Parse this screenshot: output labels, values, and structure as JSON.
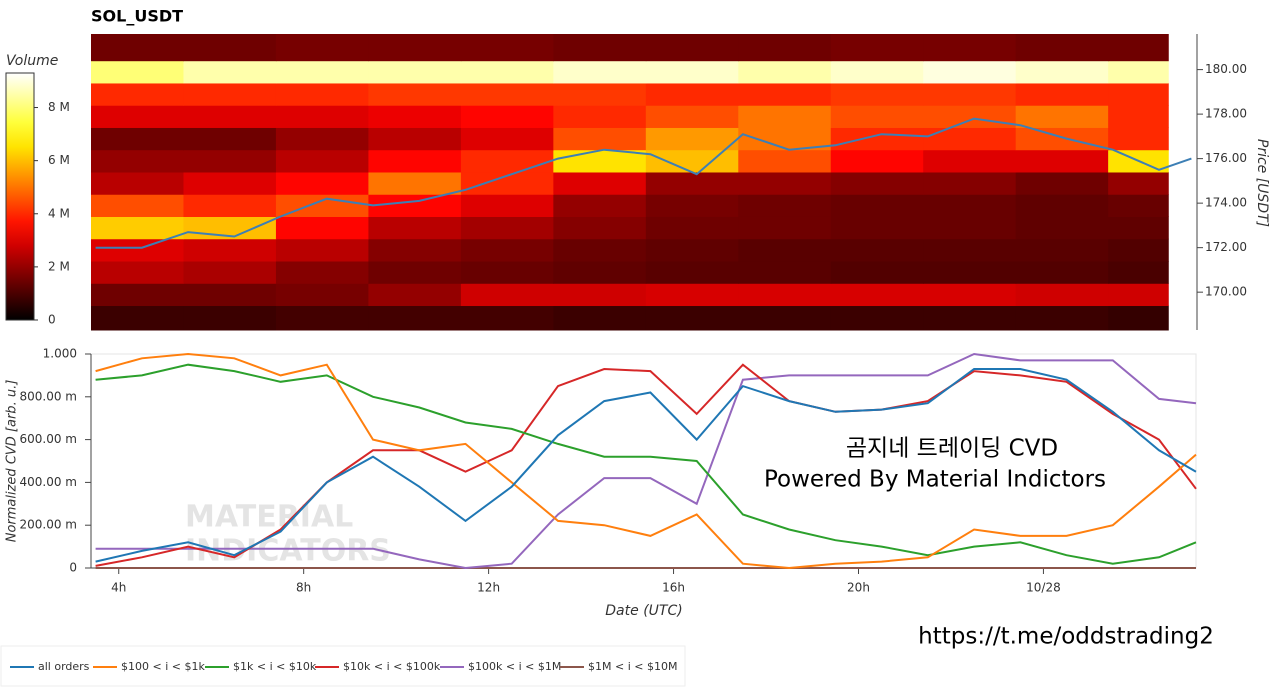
{
  "chart_data": [
    {
      "type": "heatmap",
      "title": "SOL_USDT",
      "ylabel": "Price [USDT]",
      "xlim": [
        3.4,
        27.3
      ],
      "ylim": [
        168.3,
        181.6
      ],
      "yticks": [
        {
          "value": 170,
          "label": "170.00"
        },
        {
          "value": 172,
          "label": "172.00"
        },
        {
          "value": 174,
          "label": "174.00"
        },
        {
          "value": 176,
          "label": "176.00"
        },
        {
          "value": 178,
          "label": "178.00"
        },
        {
          "value": 180,
          "label": "180.00"
        }
      ],
      "x_edges": [
        3.4,
        5.4,
        7.4,
        9.4,
        11.4,
        13.4,
        15.4,
        17.4,
        19.4,
        21.4,
        23.4,
        25.4,
        26.7
      ],
      "y_edges": [
        168.3,
        169.4,
        170.4,
        171.4,
        172.4,
        173.4,
        174.4,
        175.4,
        176.4,
        177.4,
        178.4,
        179.4,
        180.4,
        181.6
      ],
      "z": [
        [
          0.8,
          0.8,
          0.9,
          0.9,
          0.9,
          0.8,
          0.8,
          0.8,
          0.8,
          0.8,
          0.8,
          0.7
        ],
        [
          1.5,
          1.5,
          1.6,
          2.0,
          2.8,
          2.8,
          2.9,
          2.9,
          2.9,
          2.9,
          2.8,
          2.8
        ],
        [
          2.5,
          2.3,
          1.8,
          1.5,
          1.4,
          1.3,
          1.2,
          1.2,
          1.1,
          1.1,
          1.1,
          1.0
        ],
        [
          3.0,
          2.8,
          2.5,
          1.8,
          1.6,
          1.4,
          1.3,
          1.2,
          1.2,
          1.2,
          1.2,
          1.1
        ],
        [
          6.2,
          6.0,
          3.5,
          2.5,
          2.2,
          1.8,
          1.5,
          1.5,
          1.4,
          1.4,
          1.3,
          1.3
        ],
        [
          4.5,
          4.0,
          4.5,
          3.5,
          3.0,
          2.0,
          1.6,
          1.5,
          1.4,
          1.4,
          1.3,
          1.4
        ],
        [
          2.5,
          3.0,
          3.5,
          5.0,
          4.0,
          3.0,
          2.0,
          2.0,
          1.8,
          1.8,
          1.5,
          2.0
        ],
        [
          2.0,
          2.0,
          2.5,
          3.5,
          4.0,
          6.5,
          6.0,
          4.5,
          3.5,
          3.0,
          3.0,
          6.5
        ],
        [
          1.5,
          1.5,
          2.0,
          2.5,
          3.0,
          4.5,
          5.5,
          5.0,
          4.0,
          4.0,
          4.5,
          4.0
        ],
        [
          3.0,
          3.0,
          3.0,
          3.2,
          3.5,
          4.0,
          4.5,
          5.0,
          4.5,
          4.5,
          5.0,
          4.0
        ],
        [
          4.0,
          4.0,
          4.0,
          4.2,
          4.2,
          4.2,
          4.0,
          4.0,
          4.2,
          4.2,
          4.0,
          4.0
        ],
        [
          8.0,
          8.5,
          8.5,
          8.5,
          8.5,
          8.8,
          8.8,
          8.5,
          8.8,
          9.0,
          8.8,
          8.5
        ],
        [
          1.5,
          1.5,
          1.6,
          1.6,
          1.6,
          1.5,
          1.5,
          1.5,
          1.6,
          1.6,
          1.5,
          1.5
        ]
      ],
      "colorbar": {
        "label": "Volume",
        "lim": [
          0,
          9.3
        ],
        "ticks": [
          0,
          {
            "value": 2,
            "label": "2 M"
          },
          {
            "value": 4,
            "label": "4 M"
          },
          {
            "value": 6,
            "label": "6 M"
          },
          {
            "value": 8,
            "label": "8 M"
          }
        ]
      },
      "line": {
        "color": "#3d7fb5",
        "x": [
          3.5,
          4.5,
          5.5,
          6.5,
          7.5,
          8.5,
          9.5,
          10.5,
          11.5,
          12.5,
          13.5,
          14.5,
          15.5,
          16.5,
          17.5,
          18.5,
          19.5,
          20.5,
          21.5,
          22.5,
          23.5,
          24.5,
          25.5,
          26.5,
          27.2
        ],
        "values": [
          172.0,
          172.0,
          172.7,
          172.5,
          173.4,
          174.2,
          173.9,
          174.1,
          174.6,
          175.3,
          176.0,
          176.4,
          176.2,
          175.3,
          177.1,
          176.4,
          176.6,
          177.1,
          177.0,
          177.8,
          177.5,
          176.9,
          176.4,
          175.5,
          176.0
        ]
      }
    },
    {
      "type": "line",
      "xlabel": "Date (UTC)",
      "ylabel": "Normalized CVD [arb. u.]",
      "xlim": [
        3.4,
        27.3
      ],
      "xticks": [
        {
          "value": 4,
          "label": "4h"
        },
        {
          "value": 8,
          "label": "8h"
        },
        {
          "value": 12,
          "label": "12h"
        },
        {
          "value": 16,
          "label": "16h"
        },
        {
          "value": 20,
          "label": "20h"
        },
        {
          "value": 24,
          "label": "10/28"
        }
      ],
      "ylim": [
        0,
        1
      ],
      "yticks": [
        0,
        {
          "value": 0.2,
          "label": "200.00 m"
        },
        {
          "value": 0.4,
          "label": "400.00 m"
        },
        {
          "value": 0.6,
          "label": "600.00 m"
        },
        {
          "value": 0.8,
          "label": "800.00 m"
        },
        {
          "value": 1,
          "label": "1.000"
        }
      ],
      "x": [
        3.5,
        4.5,
        5.5,
        6.5,
        7.5,
        8.5,
        9.5,
        10.5,
        11.5,
        12.5,
        13.5,
        14.5,
        15.5,
        16.5,
        17.5,
        18.5,
        19.5,
        20.5,
        21.5,
        22.5,
        23.5,
        24.5,
        25.5,
        26.5,
        27.3
      ],
      "series": [
        {
          "name": "all orders",
          "color": "#1f77b4",
          "values": [
            0.03,
            0.08,
            0.12,
            0.06,
            0.17,
            0.4,
            0.52,
            0.38,
            0.22,
            0.38,
            0.62,
            0.78,
            0.82,
            0.6,
            0.85,
            0.78,
            0.73,
            0.74,
            0.77,
            0.93,
            0.93,
            0.88,
            0.73,
            0.55,
            0.45
          ]
        },
        {
          "name": "$100 < i < $1k",
          "color": "#ff7f0e",
          "values": [
            0.92,
            0.98,
            1.0,
            0.98,
            0.9,
            0.95,
            0.6,
            0.55,
            0.58,
            0.4,
            0.22,
            0.2,
            0.15,
            0.25,
            0.02,
            0.0,
            0.02,
            0.03,
            0.05,
            0.18,
            0.15,
            0.15,
            0.2,
            0.38,
            0.53
          ]
        },
        {
          "name": "$1k < i < $10k",
          "color": "#2ca02c",
          "values": [
            0.88,
            0.9,
            0.95,
            0.92,
            0.87,
            0.9,
            0.8,
            0.75,
            0.68,
            0.65,
            0.58,
            0.52,
            0.52,
            0.5,
            0.25,
            0.18,
            0.13,
            0.1,
            0.06,
            0.1,
            0.12,
            0.06,
            0.02,
            0.05,
            0.12
          ]
        },
        {
          "name": "$10k < i < $100k",
          "color": "#d62728",
          "values": [
            0.01,
            0.05,
            0.1,
            0.05,
            0.18,
            0.4,
            0.55,
            0.55,
            0.45,
            0.55,
            0.85,
            0.93,
            0.92,
            0.72,
            0.95,
            0.78,
            0.73,
            0.74,
            0.78,
            0.92,
            0.9,
            0.87,
            0.72,
            0.6,
            0.37
          ]
        },
        {
          "name": "$100k < i < $1M",
          "color": "#9467bd",
          "values": [
            0.09,
            0.09,
            0.09,
            0.09,
            0.09,
            0.09,
            0.09,
            0.04,
            0.0,
            0.02,
            0.25,
            0.42,
            0.42,
            0.3,
            0.88,
            0.9,
            0.9,
            0.9,
            0.9,
            1.0,
            0.97,
            0.97,
            0.97,
            0.79,
            0.77
          ]
        },
        {
          "name": "$1M < i < $10M",
          "color": "#8c564b",
          "values": [
            0,
            0,
            0,
            0,
            0,
            0,
            0,
            0,
            0,
            0,
            0,
            0,
            0,
            0,
            0,
            0,
            0,
            0,
            0,
            0,
            0,
            0,
            0,
            0,
            0
          ]
        }
      ],
      "watermark": [
        "MATERIAL",
        "INDICATORS"
      ],
      "annotations": [
        "곰지네 트레이딩 CVD",
        "Powered By Material Indictors",
        "https://t.me/oddstrading2"
      ]
    }
  ]
}
